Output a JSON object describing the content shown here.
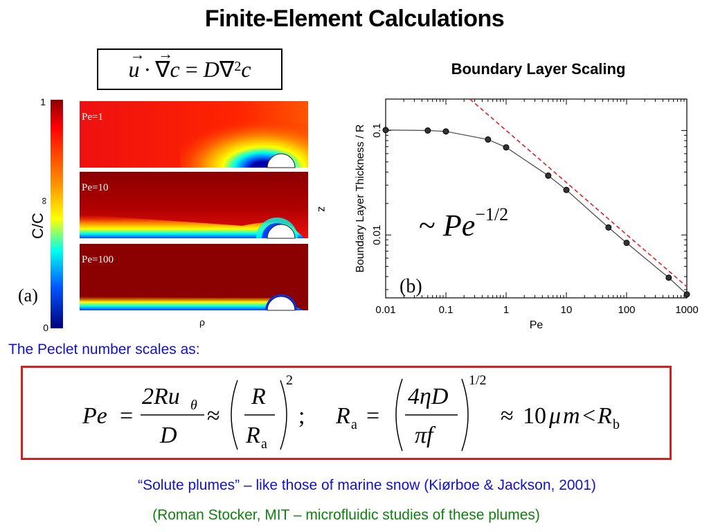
{
  "title": "Finite-Element Calculations",
  "eq_top": {
    "u": "u",
    "dot": "·",
    "nabla": "∇",
    "c": "c",
    "eq": "=",
    "D": "D",
    "nabla2": "∇",
    "sup2": "2",
    "c2": "c"
  },
  "panel_a": {
    "label": "(a)",
    "colorbar_label": "C/C",
    "colorbar_sub": "∞",
    "colorbar_max": "1",
    "colorbar_min": "0",
    "x_axis_label": "ρ",
    "y_axis_label": "z",
    "maps": [
      "Pe=1",
      "Pe=10",
      "Pe=100"
    ],
    "colors": [
      "#8b0000",
      "#ff0000",
      "#ff8800",
      "#ffff00",
      "#00ffff",
      "#0044ff",
      "#000080"
    ]
  },
  "panel_b": {
    "title": "Boundary Layer Scaling",
    "label": "(b)",
    "scaling_tilde": "~",
    "scaling_pe": "Pe",
    "scaling_exp": "−1/2",
    "guide_color": "#e02020"
  },
  "chart_data": {
    "type": "line",
    "xlabel": "Pe",
    "ylabel": "Boundary Layer Thickness / R",
    "xscale": "log",
    "yscale": "log",
    "xlim": [
      0.01,
      1000
    ],
    "ylim": [
      0.0025,
      0.2
    ],
    "x_ticks": [
      "0.01",
      "0.1",
      "1",
      "10",
      "100",
      "1000"
    ],
    "y_ticks": [
      "0.01",
      "0.1"
    ],
    "x": [
      0.01,
      0.05,
      0.1,
      0.5,
      1,
      5,
      10,
      50,
      100,
      500,
      1000
    ],
    "y": [
      0.101,
      0.1,
      0.098,
      0.082,
      0.069,
      0.037,
      0.027,
      0.0118,
      0.0084,
      0.0039,
      0.0027
    ],
    "guide_line": {
      "x": [
        0.25,
        1000
      ],
      "y": [
        0.2,
        0.0032
      ]
    }
  },
  "peclet_intro": "The Peclet number scales as:",
  "formula": {
    "Pe": "Pe",
    "eq1": "=",
    "num1": "2Ru",
    "num1_sub": "θ",
    "den1": "D",
    "approx1": "≈",
    "R": "R",
    "Ra_R": "R",
    "Ra_sub": "a",
    "pow1": "2",
    "semi": ";",
    "Ra2_R": "R",
    "Ra2_sub": "a",
    "eq2": "=",
    "num2": "4ηD",
    "den2": "πf",
    "pow2": "1/2",
    "approx2": "≈",
    "ten": "10",
    "mu": "μ",
    "m": "m",
    "lt": "<",
    "Rb_R": "R",
    "Rb_sub": "b"
  },
  "note_line1": "“Solute plumes” – like those of marine snow   (Kiørboe & Jackson, 2001)",
  "note_line2": "(Roman Stocker, MIT – microfluidic studies of these plumes)"
}
